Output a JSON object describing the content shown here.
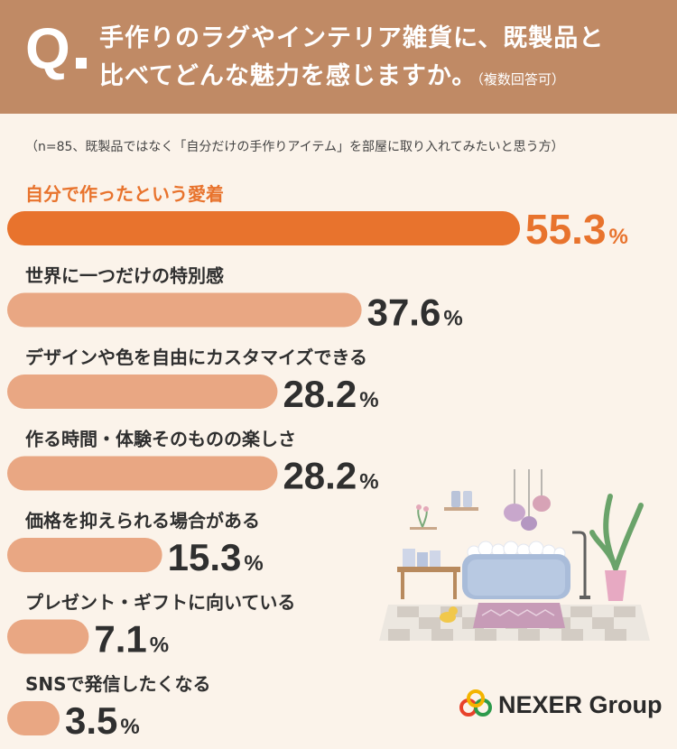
{
  "header": {
    "q_mark": "Q",
    "question_line1": "手作りのラグやインテリア雑貨に、既製品と",
    "question_line2": "比べてどんな魅力を感じますか。",
    "question_sub": "（複数回答可）"
  },
  "note": "（n=85、既製品ではなく「自分だけの手作りアイテム」を部屋に取り入れてみたいと思う方）",
  "chart_data": {
    "type": "bar",
    "orientation": "horizontal",
    "unit": "%",
    "categories": [
      "自分で作ったという愛着",
      "世界に一つだけの特別感",
      "デザインや色を自由にカスタマイズできる",
      "作る時間・体験そのものの楽しさ",
      "価格を抑えられる場合がある",
      "プレゼント・ギフトに向いている",
      "SNSで発信したくなる"
    ],
    "values": [
      55.3,
      37.6,
      28.2,
      28.2,
      15.3,
      7.1,
      3.5
    ],
    "xlim": [
      0,
      55.3
    ],
    "highlight_index": 0,
    "colors": {
      "highlight": "#e8732d",
      "normal": "#e9a783",
      "highlight_label": "#e8732d",
      "label": "#2f2f2f"
    }
  },
  "logo": {
    "text": "NEXER Group"
  },
  "illustration": {
    "icon": "bathroom-illustration"
  }
}
